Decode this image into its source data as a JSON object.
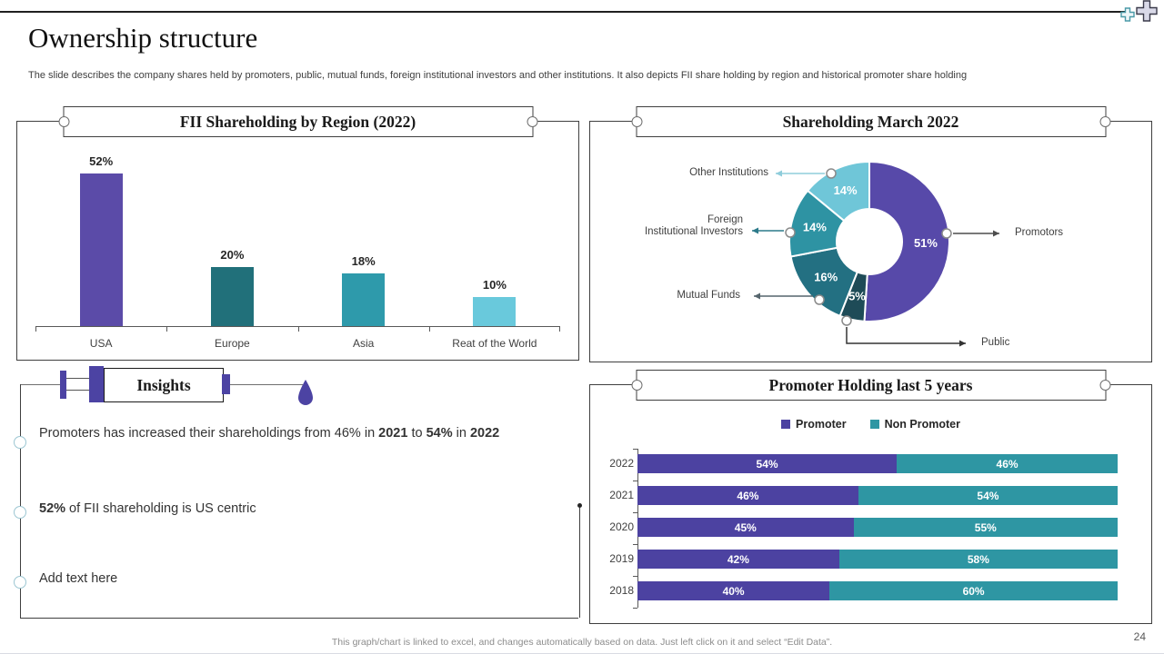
{
  "page": {
    "title": "Ownership structure",
    "subtitle": "The slide describes the company shares held by promoters, public, mutual funds, foreign institutional investors and other institutions. It also depicts FII share holding by region and historical promoter share holding",
    "footer": "This graph/chart is linked to excel, and changes automatically based on data. Just left click on it and select “Edit Data”.",
    "page_number": "24"
  },
  "colors": {
    "purple": "#5B4BA8",
    "dark_teal": "#21707A",
    "teal": "#2E9AAB",
    "light_teal": "#69C9DC",
    "panel_border": "#3f3f3f",
    "accent_drop": "#4C43A3"
  },
  "insights": {
    "header": "Insights",
    "items": [
      {
        "runs": [
          {
            "t": "Promoters has increased their shareholdings from 46% in "
          },
          {
            "t": "2021",
            "b": 1
          },
          {
            "t": " to "
          },
          {
            "t": "54%",
            "b": 1
          },
          {
            "t": " in "
          },
          {
            "t": "2022",
            "b": 1
          }
        ]
      },
      {
        "runs": [
          {
            "t": "52%",
            "b": 1
          },
          {
            "t": " of FII shareholding is US centric"
          }
        ]
      },
      {
        "runs": [
          {
            "t": "Add text here"
          }
        ]
      }
    ]
  },
  "chart_data": [
    {
      "id": "fii-by-region",
      "type": "bar",
      "title": "FII Shareholding by Region (2022)",
      "categories": [
        "USA",
        "Europe",
        "Asia",
        "Reat of the World"
      ],
      "values": [
        52,
        20,
        18,
        10
      ],
      "data_labels": [
        "52%",
        "20%",
        "18%",
        "10%"
      ],
      "colors": [
        "#5B4BA8",
        "#21707A",
        "#2E9AAB",
        "#69C9DC"
      ],
      "unit": "%",
      "ylim": [
        0,
        52
      ],
      "grid": false
    },
    {
      "id": "shareholding-march-2022",
      "type": "pie",
      "variant": "donut",
      "title": "Shareholding March 2022",
      "start": "top",
      "direction": "clockwise",
      "segments": [
        {
          "label": "Promotors",
          "value": 51,
          "color": "#5749A9"
        },
        {
          "label": "Public",
          "value": 5,
          "color": "#1E4B57"
        },
        {
          "label": "Mutual Funds",
          "value": 16,
          "color": "#237082"
        },
        {
          "label": "Foreign Institutional Investors",
          "value": 14,
          "color": "#2E93A3"
        },
        {
          "label": "Other Institutions",
          "value": 14,
          "color": "#6FC6D8"
        }
      ],
      "data_labels": [
        "51%",
        "5%",
        "16%",
        "14%",
        "14%"
      ]
    },
    {
      "id": "promoter-holding",
      "type": "bar",
      "variant": "horizontal-stacked",
      "title": "Promoter Holding last 5 years",
      "categories": [
        "2022",
        "2021",
        "2020",
        "2019",
        "2018"
      ],
      "series": [
        {
          "name": "Promoter",
          "color": "#4C42A1",
          "values": [
            54,
            46,
            45,
            42,
            40
          ]
        },
        {
          "name": "Non Promoter",
          "color": "#2E96A3",
          "values": [
            46,
            54,
            55,
            58,
            60
          ]
        }
      ],
      "xlim": [
        0,
        100
      ],
      "legend_position": "top",
      "data_label_format": "{v}%"
    }
  ]
}
